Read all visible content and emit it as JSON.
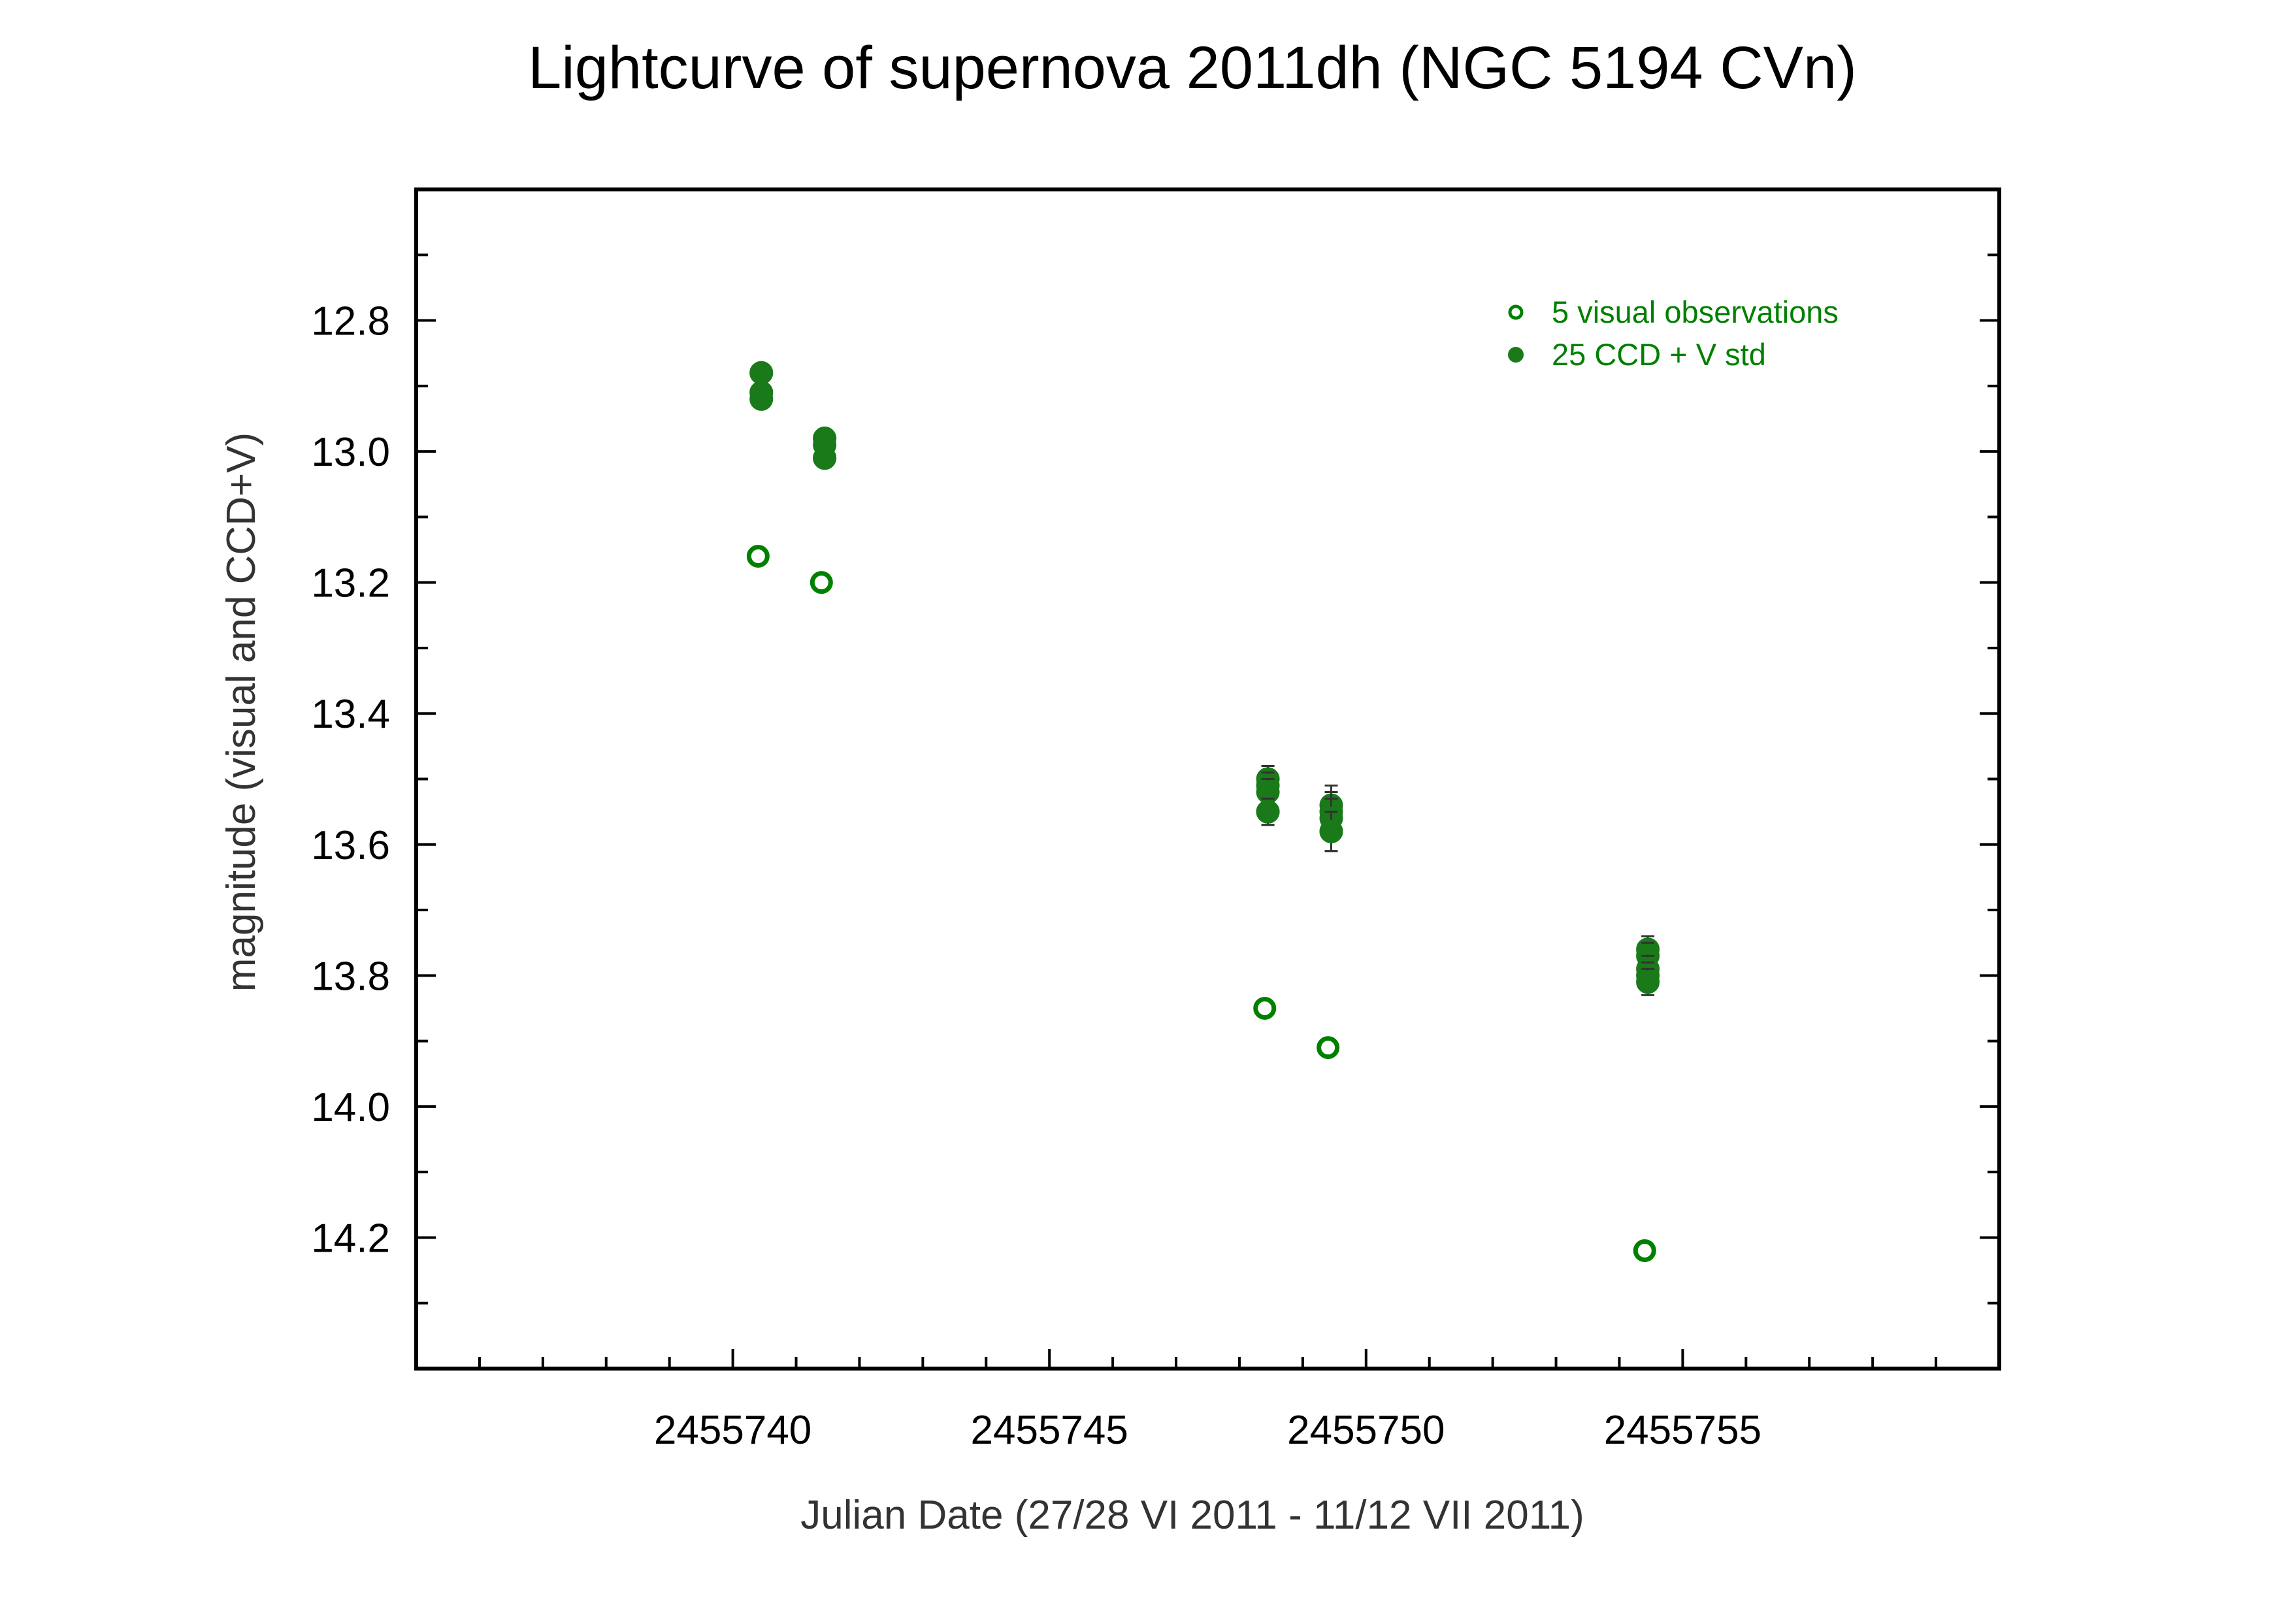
{
  "chart_data": {
    "type": "scatter",
    "title": "Lightcurve of supernova 2011dh (NGC 5194 CVn)",
    "xlabel": "Julian Date  (27/28 VI 2011 - 11/12 VII 2011)",
    "ylabel": "magnitude  (visual and CCD+V)",
    "xlim": [
      2455735,
      2455760
    ],
    "ylim": [
      14.4,
      12.6
    ],
    "y_inverted": true,
    "x_ticks": [
      2455740,
      2455745,
      2455750,
      2455755
    ],
    "x_tick_labels": [
      "2455740",
      "2455745",
      "2455750",
      "2455755"
    ],
    "x_minor_step": 1,
    "y_ticks": [
      12.8,
      13.0,
      13.2,
      13.4,
      13.6,
      13.8,
      14.0,
      14.2
    ],
    "y_tick_labels": [
      "12.8",
      "13.0",
      "13.2",
      "13.4",
      "13.6",
      "13.8",
      "14.0",
      "14.2"
    ],
    "grid": false,
    "legend_position": "top-right",
    "series": [
      {
        "name": "5  visual observations",
        "marker": "open-circle",
        "color": "#008000",
        "x": [
          2455740.4,
          2455741.4,
          2455748.4,
          2455749.4,
          2455754.4
        ],
        "y": [
          13.16,
          13.2,
          13.85,
          13.91,
          14.22
        ]
      },
      {
        "name": "25  CCD + V std",
        "marker": "filled-circle",
        "color": "#1a7a1a",
        "x": [
          2455740.45,
          2455740.45,
          2455740.45,
          2455740.45,
          2455740.45,
          2455741.45,
          2455741.45,
          2455741.45,
          2455741.45,
          2455741.45,
          2455748.45,
          2455748.45,
          2455748.45,
          2455748.45,
          2455748.45,
          2455749.45,
          2455749.45,
          2455749.45,
          2455749.45,
          2455749.45,
          2455754.45,
          2455754.45,
          2455754.45,
          2455754.45,
          2455754.45
        ],
        "y": [
          12.88,
          12.88,
          12.91,
          12.91,
          12.92,
          12.98,
          12.98,
          12.99,
          13.01,
          13.01,
          13.5,
          13.51,
          13.52,
          13.55,
          13.55,
          13.54,
          13.55,
          13.56,
          13.58,
          13.58,
          13.76,
          13.77,
          13.79,
          13.8,
          13.81
        ],
        "err": [
          0.01,
          0.01,
          0.01,
          0.01,
          0.01,
          0.01,
          0.01,
          0.01,
          0.01,
          0.01,
          0.02,
          0.02,
          0.02,
          0.02,
          0.02,
          0.03,
          0.03,
          0.03,
          0.03,
          0.03,
          0.02,
          0.02,
          0.02,
          0.02,
          0.02
        ]
      }
    ]
  }
}
